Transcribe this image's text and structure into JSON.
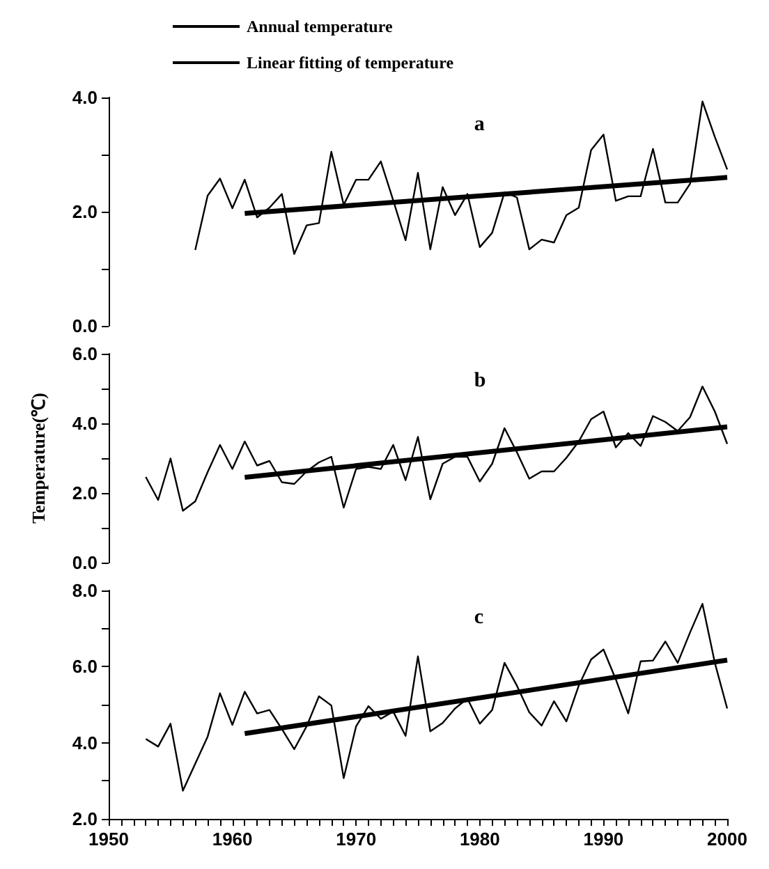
{
  "chart_data": [
    {
      "type": "line",
      "legend": "top left",
      "annotations": [
        "a"
      ],
      "xlim": [
        1950,
        2000
      ],
      "ylim": [
        0,
        4
      ],
      "yticks": [
        {
          "value": 0,
          "label": "0.0"
        },
        {
          "value": 1,
          "label": null
        },
        {
          "value": 2,
          "label": "2.0"
        },
        {
          "value": 3,
          "label": null
        },
        {
          "value": 4,
          "label": "4.0"
        }
      ],
      "tick_labels": "y",
      "grid": false,
      "marker": "none",
      "series": [
        {
          "name": "Annual temperature",
          "color": "#000000",
          "x": [
            1957,
            1958,
            1959,
            1960,
            1961,
            1962,
            1963,
            1964,
            1965,
            1966,
            1967,
            1968,
            1969,
            1970,
            1971,
            1972,
            1973,
            1974,
            1975,
            1976,
            1977,
            1978,
            1979,
            1980,
            1981,
            1982,
            1983,
            1984,
            1985,
            1986,
            1987,
            1988,
            1989,
            1990,
            1991,
            1992,
            1993,
            1994,
            1995,
            1996,
            1997,
            1998,
            1999,
            2000
          ],
          "values": [
            1.33,
            2.28,
            2.58,
            2.06,
            2.56,
            1.9,
            2.07,
            2.31,
            1.26,
            1.76,
            1.8,
            3.05,
            2.12,
            2.56,
            2.56,
            2.88,
            2.2,
            1.5,
            2.68,
            1.34,
            2.43,
            1.94,
            2.31,
            1.38,
            1.63,
            2.34,
            2.25,
            1.34,
            1.51,
            1.46,
            1.94,
            2.07,
            3.08,
            3.35,
            2.19,
            2.27,
            2.27,
            3.1,
            2.16,
            2.16,
            2.49,
            3.93,
            3.31,
            2.74
          ]
        },
        {
          "name": "Linear fitting of temperature",
          "color": "#000000",
          "x": [
            1961,
            2000
          ],
          "values": [
            1.97,
            2.6
          ]
        }
      ]
    },
    {
      "type": "line",
      "ylabel": "Temperature(℃)",
      "annotations": [
        "b"
      ],
      "xlim": [
        1950,
        2000
      ],
      "ylim": [
        0,
        6
      ],
      "yticks": [
        {
          "value": 0,
          "label": "0.0"
        },
        {
          "value": 1,
          "label": null
        },
        {
          "value": 2,
          "label": "2.0"
        },
        {
          "value": 3,
          "label": null
        },
        {
          "value": 4,
          "label": "4.0"
        },
        {
          "value": 5,
          "label": null
        },
        {
          "value": 6,
          "label": "6.0"
        }
      ],
      "tick_labels": "y",
      "grid": false,
      "marker": "none",
      "series": [
        {
          "color": "#000000",
          "x": [
            1953,
            1954,
            1955,
            1956,
            1957,
            1958,
            1959,
            1960,
            1961,
            1962,
            1963,
            1964,
            1965,
            1966,
            1967,
            1968,
            1969,
            1970,
            1971,
            1972,
            1973,
            1974,
            1975,
            1976,
            1977,
            1978,
            1979,
            1980,
            1981,
            1982,
            1983,
            1984,
            1985,
            1986,
            1987,
            1988,
            1989,
            1990,
            1991,
            1992,
            1993,
            1994,
            1995,
            1996,
            1997,
            1998,
            1999,
            2000
          ],
          "values": [
            2.46,
            1.8,
            2.99,
            1.49,
            1.76,
            2.6,
            3.38,
            2.69,
            3.48,
            2.79,
            2.92,
            2.31,
            2.26,
            2.62,
            2.88,
            3.04,
            1.58,
            2.69,
            2.75,
            2.69,
            3.38,
            2.37,
            3.61,
            1.82,
            2.84,
            3.04,
            3.04,
            2.33,
            2.84,
            3.86,
            3.17,
            2.41,
            2.62,
            2.62,
            3.01,
            3.48,
            4.12,
            4.34,
            3.31,
            3.72,
            3.35,
            4.21,
            4.04,
            3.78,
            4.18,
            5.06,
            4.34,
            3.41
          ]
        },
        {
          "color": "#000000",
          "x": [
            1961,
            2000
          ],
          "values": [
            2.45,
            3.9
          ]
        }
      ]
    },
    {
      "type": "line",
      "annotations": [
        "c"
      ],
      "xlim": [
        1950,
        2000
      ],
      "xticks": [
        1950,
        {
          "value": 1951,
          "label": null
        },
        {
          "value": 1952,
          "label": null
        },
        {
          "value": 1953,
          "label": null
        },
        {
          "value": 1954,
          "label": null
        },
        {
          "value": 1955,
          "label": null
        },
        {
          "value": 1956,
          "label": null
        },
        {
          "value": 1957,
          "label": null
        },
        {
          "value": 1958,
          "label": null
        },
        {
          "value": 1959,
          "label": null
        },
        1960,
        {
          "value": 1961,
          "label": null
        },
        {
          "value": 1962,
          "label": null
        },
        {
          "value": 1963,
          "label": null
        },
        {
          "value": 1964,
          "label": null
        },
        {
          "value": 1965,
          "label": null
        },
        {
          "value": 1966,
          "label": null
        },
        {
          "value": 1967,
          "label": null
        },
        {
          "value": 1968,
          "label": null
        },
        {
          "value": 1969,
          "label": null
        },
        1970,
        {
          "value": 1971,
          "label": null
        },
        {
          "value": 1972,
          "label": null
        },
        {
          "value": 1973,
          "label": null
        },
        {
          "value": 1974,
          "label": null
        },
        {
          "value": 1975,
          "label": null
        },
        {
          "value": 1976,
          "label": null
        },
        {
          "value": 1977,
          "label": null
        },
        {
          "value": 1978,
          "label": null
        },
        {
          "value": 1979,
          "label": null
        },
        1980,
        {
          "value": 1981,
          "label": null
        },
        {
          "value": 1982,
          "label": null
        },
        {
          "value": 1983,
          "label": null
        },
        {
          "value": 1984,
          "label": null
        },
        {
          "value": 1985,
          "label": null
        },
        {
          "value": 1986,
          "label": null
        },
        {
          "value": 1987,
          "label": null
        },
        {
          "value": 1988,
          "label": null
        },
        {
          "value": 1989,
          "label": null
        },
        1990,
        {
          "value": 1991,
          "label": null
        },
        {
          "value": 1992,
          "label": null
        },
        {
          "value": 1993,
          "label": null
        },
        {
          "value": 1994,
          "label": null
        },
        {
          "value": 1995,
          "label": null
        },
        {
          "value": 1996,
          "label": null
        },
        {
          "value": 1997,
          "label": null
        },
        {
          "value": 1998,
          "label": null
        },
        {
          "value": 1999,
          "label": null
        },
        2000
      ],
      "ylim": [
        2,
        8
      ],
      "yticks": [
        {
          "value": 2,
          "label": "2.0"
        },
        {
          "value": 3,
          "label": null
        },
        {
          "value": 4,
          "label": "4.0"
        },
        {
          "value": 5,
          "label": null
        },
        {
          "value": 6,
          "label": "6.0"
        },
        {
          "value": 7,
          "label": null
        },
        {
          "value": 8,
          "label": "8.0"
        }
      ],
      "grid": false,
      "marker": "none",
      "series": [
        {
          "color": "#000000",
          "x": [
            1953,
            1954,
            1955,
            1956,
            1957,
            1958,
            1959,
            1960,
            1961,
            1962,
            1963,
            1964,
            1965,
            1966,
            1967,
            1968,
            1969,
            1970,
            1971,
            1972,
            1973,
            1974,
            1975,
            1976,
            1977,
            1978,
            1979,
            1980,
            1981,
            1982,
            1983,
            1984,
            1985,
            1986,
            1987,
            1988,
            1989,
            1990,
            1991,
            1992,
            1993,
            1994,
            1995,
            1996,
            1997,
            1998,
            1999,
            2000
          ],
          "values": [
            4.1,
            3.9,
            4.5,
            2.74,
            3.45,
            4.16,
            5.3,
            4.47,
            5.34,
            4.77,
            4.86,
            4.36,
            3.83,
            4.43,
            5.22,
            4.98,
            3.07,
            4.43,
            4.96,
            4.63,
            4.82,
            4.18,
            6.27,
            4.3,
            4.52,
            4.9,
            5.16,
            4.5,
            4.86,
            6.1,
            5.5,
            4.8,
            4.45,
            5.09,
            4.56,
            5.5,
            6.19,
            6.45,
            5.66,
            4.77,
            6.14,
            6.16,
            6.66,
            6.1,
            6.9,
            7.65,
            6.1,
            4.9
          ]
        },
        {
          "color": "#000000",
          "x": [
            1961,
            2000
          ],
          "values": [
            4.24,
            6.17
          ]
        }
      ]
    }
  ]
}
